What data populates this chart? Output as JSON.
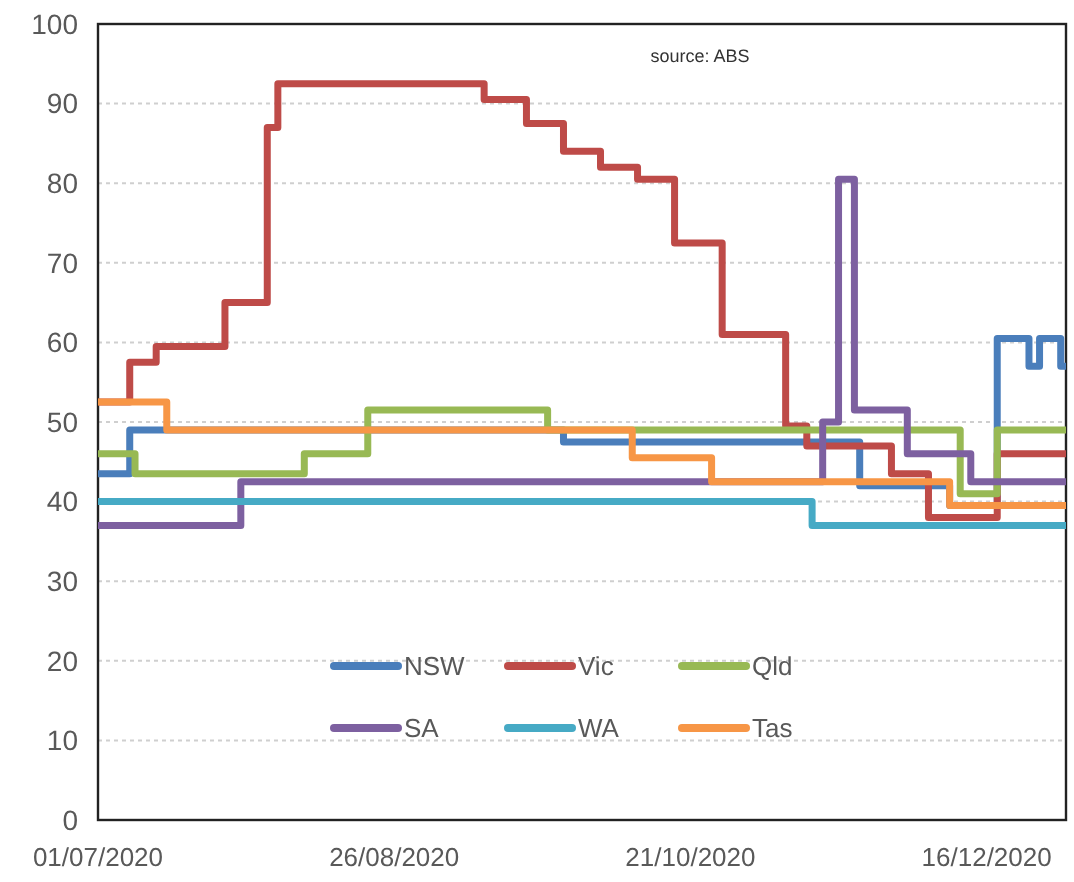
{
  "chart_data": {
    "type": "step",
    "annotations": [
      "source:  ABS"
    ],
    "xlim": [
      "2020-07-01",
      "2020-12-31"
    ],
    "xticks": [
      {
        "value": "2020-07-01",
        "label": "01/07/2020"
      },
      {
        "value": "2020-08-26",
        "label": "26/08/2020"
      },
      {
        "value": "2020-10-21",
        "label": "21/10/2020"
      },
      {
        "value": "2020-12-16",
        "label": "16/12/2020"
      }
    ],
    "ylim": [
      0,
      100
    ],
    "yticks": [
      0,
      10,
      20,
      30,
      40,
      50,
      60,
      70,
      80,
      90,
      100
    ],
    "grid": "y",
    "legend": "bottom",
    "line_style": "solid",
    "marker": "none",
    "series": [
      {
        "name": "NSW",
        "color": "#4a7ebb",
        "x": [
          "2020-07-01",
          "2020-07-07",
          "2020-09-27",
          "2020-11-22",
          "2020-12-09",
          "2020-12-18",
          "2020-12-24",
          "2020-12-26",
          "2020-12-30",
          "2020-12-31"
        ],
        "values": [
          43.5,
          49,
          47.5,
          42,
          39.5,
          60.5,
          57,
          60.5,
          57,
          57
        ]
      },
      {
        "name": "Vic",
        "color": "#be4b48",
        "x": [
          "2020-07-01",
          "2020-07-07",
          "2020-07-12",
          "2020-07-25",
          "2020-08-02",
          "2020-08-04",
          "2020-09-12",
          "2020-09-20",
          "2020-09-27",
          "2020-10-04",
          "2020-10-11",
          "2020-10-18",
          "2020-10-27",
          "2020-11-08",
          "2020-11-12",
          "2020-11-28",
          "2020-12-05",
          "2020-12-18",
          "2020-12-31"
        ],
        "values": [
          52.5,
          57.5,
          59.5,
          65,
          87,
          92.5,
          90.5,
          87.5,
          84,
          82,
          80.5,
          72.5,
          61,
          49.5,
          47,
          43.5,
          38,
          46,
          46
        ]
      },
      {
        "name": "Qld",
        "color": "#98b954",
        "x": [
          "2020-07-01",
          "2020-07-08",
          "2020-08-09",
          "2020-08-21",
          "2020-09-24",
          "2020-12-11",
          "2020-12-18",
          "2020-12-31"
        ],
        "values": [
          46,
          43.5,
          46,
          51.5,
          49,
          41,
          49,
          49
        ]
      },
      {
        "name": "SA",
        "color": "#7d60a0",
        "x": [
          "2020-07-01",
          "2020-07-28",
          "2020-11-15",
          "2020-11-18",
          "2020-11-21",
          "2020-12-01",
          "2020-12-13",
          "2020-12-31"
        ],
        "values": [
          37,
          42.5,
          50,
          80.5,
          51.5,
          46,
          42.5,
          42.5
        ]
      },
      {
        "name": "WA",
        "color": "#46aac5",
        "x": [
          "2020-07-01",
          "2020-11-13",
          "2020-12-31"
        ],
        "values": [
          40,
          37,
          37
        ]
      },
      {
        "name": "Tas",
        "color": "#f79646",
        "x": [
          "2020-07-01",
          "2020-07-14",
          "2020-10-10",
          "2020-10-25",
          "2020-12-09",
          "2020-12-31"
        ],
        "values": [
          52.5,
          49,
          45.5,
          42.5,
          39.5,
          39.5
        ]
      }
    ]
  }
}
